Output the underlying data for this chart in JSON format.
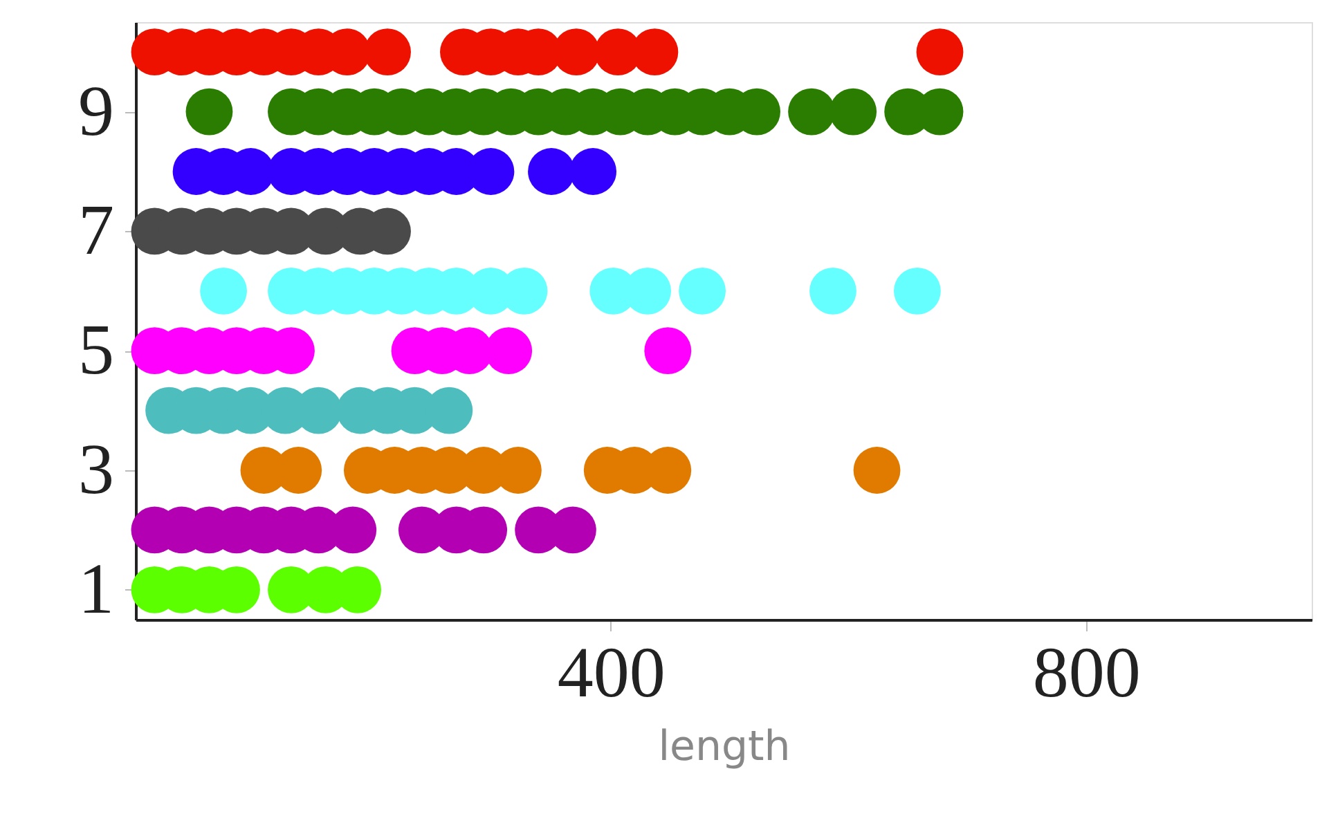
{
  "chart_data": {
    "type": "scatter",
    "xlabel": "length",
    "xlim": [
      0,
      990
    ],
    "xticks": [
      400,
      800
    ],
    "ylim": [
      0.5,
      10.5
    ],
    "yticks": [
      1,
      3,
      5,
      7,
      9
    ],
    "marker": "circle",
    "grid": false,
    "series": [
      {
        "color": "#5cff00",
        "x": [
          16,
          39,
          62,
          85,
          131,
          160,
          187
        ],
        "values": [
          1,
          1,
          1,
          1,
          1,
          1,
          1
        ]
      },
      {
        "color": "#b300b3",
        "x": [
          16,
          39,
          62,
          85,
          108,
          131,
          154,
          183,
          241,
          270,
          293,
          339,
          368
        ],
        "values": [
          2,
          2,
          2,
          2,
          2,
          2,
          2,
          2,
          2,
          2,
          2,
          2,
          2
        ]
      },
      {
        "color": "#e07b00",
        "x": [
          108,
          137,
          195,
          218,
          241,
          264,
          293,
          322,
          397,
          420,
          448,
          624
        ],
        "values": [
          3,
          3,
          3,
          3,
          3,
          3,
          3,
          3,
          3,
          3,
          3,
          3
        ]
      },
      {
        "color": "#4dbdbd",
        "x": [
          28,
          51,
          74,
          97,
          126,
          154,
          189,
          212,
          235,
          264
        ],
        "values": [
          4,
          4,
          4,
          4,
          4,
          4,
          4,
          4,
          4,
          4
        ]
      },
      {
        "color": "#ff00ff",
        "x": [
          16,
          39,
          62,
          85,
          108,
          131,
          235,
          258,
          281,
          314,
          448
        ],
        "values": [
          5,
          5,
          5,
          5,
          5,
          5,
          5,
          5,
          5,
          5,
          5
        ]
      },
      {
        "color": "#66ffff",
        "x": [
          74,
          131,
          154,
          178,
          201,
          224,
          247,
          270,
          299,
          327,
          402,
          431,
          477,
          587,
          658
        ],
        "values": [
          6,
          6,
          6,
          6,
          6,
          6,
          6,
          6,
          6,
          6,
          6,
          6,
          6,
          6,
          6
        ]
      },
      {
        "color": "#4a4a4a",
        "x": [
          16,
          39,
          62,
          85,
          108,
          131,
          160,
          189,
          212
        ],
        "values": [
          7,
          7,
          7,
          7,
          7,
          7,
          7,
          7,
          7
        ]
      },
      {
        "color": "#3300ff",
        "x": [
          51,
          74,
          97,
          131,
          154,
          178,
          201,
          224,
          247,
          270,
          299,
          350,
          385
        ],
        "values": [
          8,
          8,
          8,
          8,
          8,
          8,
          8,
          8,
          8,
          8,
          8,
          8,
          8
        ]
      },
      {
        "color": "#2a7d00",
        "x": [
          62,
          131,
          154,
          178,
          201,
          224,
          247,
          270,
          293,
          316,
          339,
          362,
          385,
          408,
          431,
          454,
          477,
          500,
          523,
          569,
          604,
          650,
          677
        ],
        "values": [
          9,
          9,
          9,
          9,
          9,
          9,
          9,
          9,
          9,
          9,
          9,
          9,
          9,
          9,
          9,
          9,
          9,
          9,
          9,
          9,
          9,
          9,
          9
        ]
      },
      {
        "color": "#ee1100",
        "x": [
          16,
          39,
          62,
          85,
          108,
          131,
          154,
          178,
          212,
          276,
          299,
          322,
          339,
          371,
          406,
          437,
          677
        ],
        "values": [
          10,
          10,
          10,
          10,
          10,
          10,
          10,
          10,
          10,
          10,
          10,
          10,
          10,
          10,
          10,
          10,
          10
        ]
      }
    ]
  }
}
